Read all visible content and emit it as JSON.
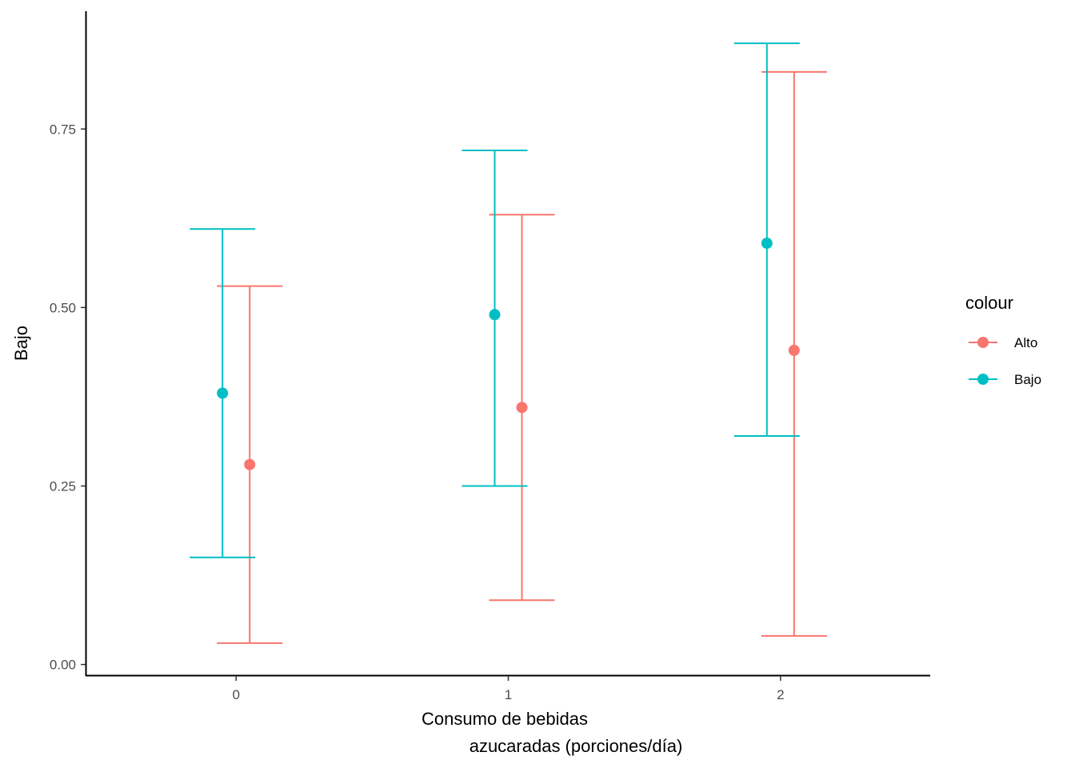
{
  "chart_data": {
    "type": "scatter",
    "subtype": "point-with-errorbars",
    "title": "",
    "xlabel_line1": "Consumo de bebidas",
    "xlabel_line2": "azucaradas (porciones/día)",
    "ylabel": "Bajo",
    "x_ticks": [
      "0",
      "1",
      "2"
    ],
    "y_ticks": [
      "0.00",
      "0.25",
      "0.50",
      "0.75"
    ],
    "y_tick_values": [
      0,
      0.25,
      0.5,
      0.75
    ],
    "ylim": [
      -0.015,
      0.915
    ],
    "xlim": [
      -0.55,
      2.55
    ],
    "dodge": 0.05,
    "grid": false,
    "legend": {
      "title": "colour",
      "position": "right",
      "entries": [
        {
          "name": "Alto",
          "color": "#F8766D"
        },
        {
          "name": "Bajo",
          "color": "#00BFC4"
        }
      ]
    },
    "series": [
      {
        "name": "Alto",
        "color": "#F8766D",
        "points": [
          {
            "x": 0,
            "y": 0.28,
            "ymin": 0.03,
            "ymax": 0.53
          },
          {
            "x": 1,
            "y": 0.36,
            "ymin": 0.09,
            "ymax": 0.63
          },
          {
            "x": 2,
            "y": 0.44,
            "ymin": 0.04,
            "ymax": 0.83
          }
        ]
      },
      {
        "name": "Bajo",
        "color": "#00BFC4",
        "points": [
          {
            "x": 0,
            "y": 0.38,
            "ymin": 0.15,
            "ymax": 0.61
          },
          {
            "x": 1,
            "y": 0.49,
            "ymin": 0.25,
            "ymax": 0.72
          },
          {
            "x": 2,
            "y": 0.59,
            "ymin": 0.32,
            "ymax": 0.87
          }
        ]
      }
    ]
  }
}
